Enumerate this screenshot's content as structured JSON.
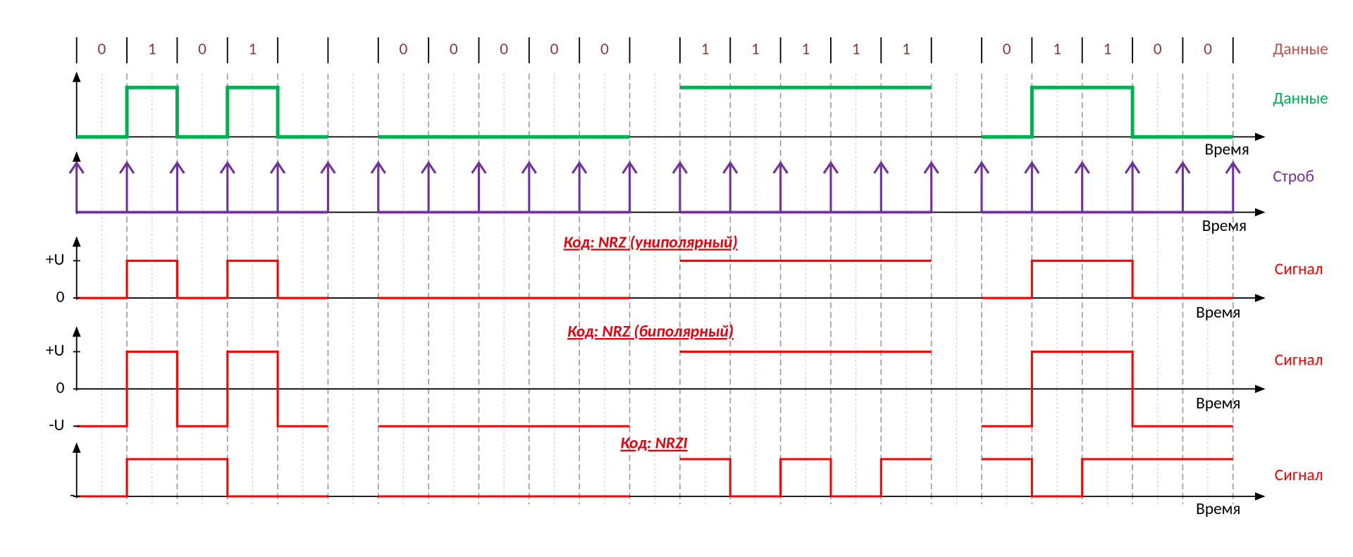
{
  "labels": {
    "data_top": "Данные",
    "data_signal": "Данные",
    "strobe": "Строб",
    "time": "Время",
    "signal": "Сигнал"
  },
  "bits": [
    [
      "0",
      "1",
      "0",
      "1",
      null
    ],
    [
      "0",
      "0",
      "0",
      "0",
      "0"
    ],
    [
      "1",
      "1",
      "1",
      "1",
      "1"
    ],
    [
      "0",
      "1",
      "1",
      "0",
      "0"
    ]
  ],
  "codes": [
    {
      "title": "Код: NRZ (униполярный)",
      "levels": [
        "+U",
        "0"
      ]
    },
    {
      "title": "Код: NRZ (биполярный)",
      "levels": [
        "+U",
        "0",
        "-U"
      ]
    },
    {
      "title": "Код: NRZI",
      "levels": [
        "-"
      ]
    }
  ]
}
